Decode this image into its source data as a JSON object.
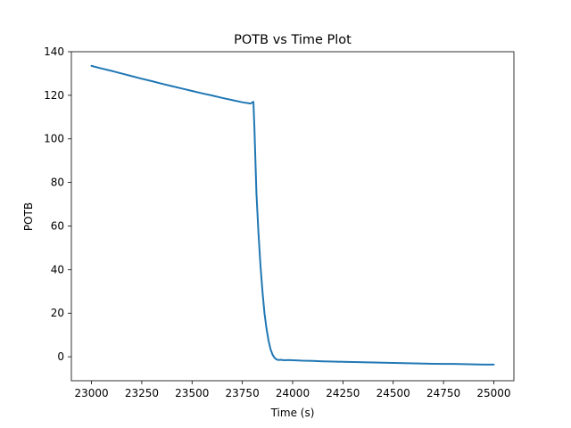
{
  "chart_data": {
    "type": "line",
    "title": "POTB vs Time Plot",
    "xlabel": "Time (s)",
    "ylabel": "POTB",
    "xlim": [
      22900,
      25100
    ],
    "ylim": [
      -11,
      140
    ],
    "xticks": [
      23000,
      23250,
      23500,
      23750,
      24000,
      24250,
      24500,
      24750,
      25000
    ],
    "yticks": [
      0,
      20,
      40,
      60,
      80,
      100,
      120,
      140
    ],
    "grid": false,
    "color": "#1f77b4",
    "series": [
      {
        "x": [
          23000,
          23050,
          23100,
          23150,
          23200,
          23250,
          23300,
          23350,
          23400,
          23450,
          23500,
          23550,
          23600,
          23650,
          23700,
          23750,
          23790,
          23805,
          23810,
          23815,
          23820,
          23830,
          23840,
          23850,
          23860,
          23870,
          23880,
          23890,
          23900,
          23910,
          23920,
          23930,
          23940,
          23960,
          23980,
          24000,
          24050,
          24100,
          24150,
          24200,
          24250,
          24300,
          24350,
          24400,
          24450,
          24500,
          24550,
          24600,
          24650,
          24700,
          24750,
          24800,
          24850,
          24900,
          24950,
          25000
        ],
        "y": [
          133.5,
          132.3,
          131.2,
          130.0,
          128.8,
          127.6,
          126.5,
          125.3,
          124.2,
          123.1,
          122.0,
          120.9,
          119.9,
          118.8,
          117.8,
          116.8,
          116.2,
          117.0,
          105.0,
          90.0,
          75.0,
          57.0,
          42.0,
          30.0,
          20.0,
          13.0,
          7.5,
          3.5,
          1.0,
          -0.5,
          -1.2,
          -1.5,
          -1.4,
          -1.6,
          -1.5,
          -1.6,
          -1.8,
          -1.9,
          -2.1,
          -2.2,
          -2.3,
          -2.4,
          -2.5,
          -2.6,
          -2.7,
          -2.8,
          -2.9,
          -3.0,
          -3.1,
          -3.2,
          -3.3,
          -3.3,
          -3.4,
          -3.5,
          -3.6,
          -3.6
        ]
      }
    ]
  }
}
